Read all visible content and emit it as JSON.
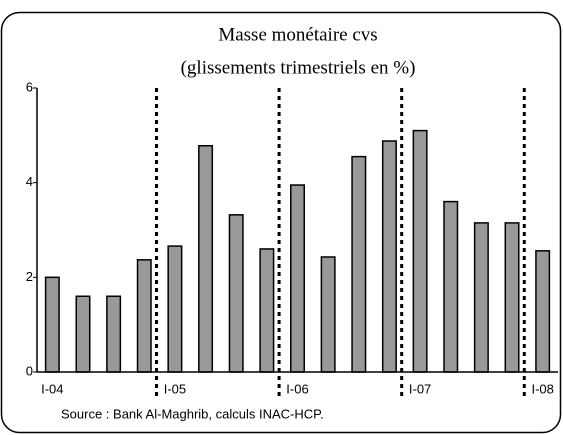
{
  "chart_data": {
    "type": "bar",
    "title": [
      "Masse monétaire cvs",
      "(glissements trimestriels en %)"
    ],
    "categories": [
      "I-04",
      null,
      null,
      null,
      "I-05",
      null,
      null,
      null,
      "I-06",
      null,
      null,
      null,
      "I-07",
      null,
      null,
      null,
      "I-08"
    ],
    "values": [
      2.0,
      1.6,
      1.6,
      2.37,
      2.66,
      4.78,
      3.32,
      2.6,
      3.95,
      2.43,
      4.55,
      4.88,
      5.1,
      3.6,
      3.15,
      3.15,
      2.56
    ],
    "color": "#999999",
    "ylim": [
      0,
      6
    ],
    "yticks": [
      0,
      2,
      4,
      6
    ],
    "grid": false,
    "source": "Source : Bank Al-Maghrib, calculs INAC-HCP."
  }
}
